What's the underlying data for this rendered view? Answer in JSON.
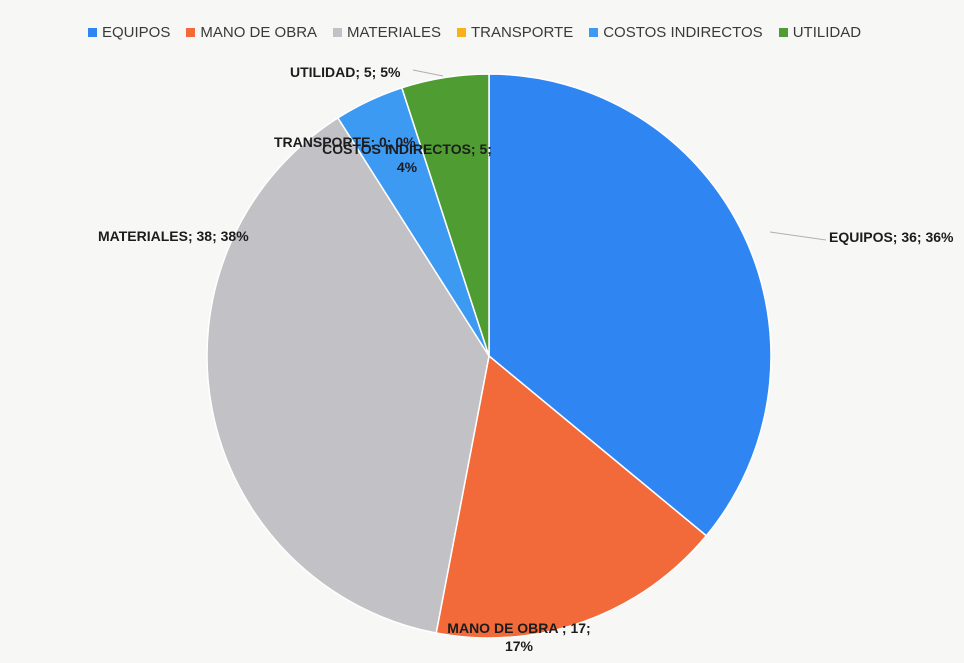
{
  "chart_data": {
    "type": "pie",
    "legend_position": "top",
    "categories": [
      "EQUIPOS",
      "MANO DE OBRA",
      "MATERIALES",
      "TRANSPORTE",
      "COSTOS INDIRECTOS",
      "UTILIDAD"
    ],
    "values": [
      36,
      17,
      38,
      0,
      5,
      5
    ],
    "percentages": [
      "36%",
      "17%",
      "38%",
      "0%",
      "4%",
      "5%"
    ],
    "colors": [
      "#2f86f2",
      "#f26a3a",
      "#c2c2c6",
      "#f7b21a",
      "#3d9af2",
      "#4f9d32"
    ],
    "slice_fractions": [
      0.36,
      0.17,
      0.38,
      0.0,
      0.04,
      0.05
    ],
    "data_labels": [
      [
        "EQUIPOS; 36; 36%"
      ],
      [
        "MANO DE OBRA ; 17;",
        "17%"
      ],
      [
        "MATERIALES; 38; 38%"
      ],
      [
        "TRANSPORTE; 0; 0%"
      ],
      [
        "COSTOS INDIRECTOS; 5;",
        "4%"
      ],
      [
        "UTILIDAD; 5; 5%"
      ]
    ]
  }
}
